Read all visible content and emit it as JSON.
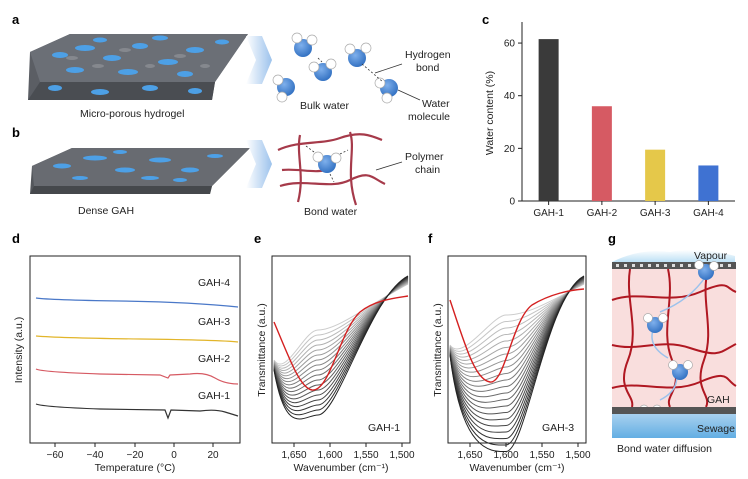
{
  "panels": {
    "a": {
      "letter": "a",
      "hydrogel_label": "Micro-porous hydrogel",
      "bulk_label": "Bulk water",
      "hbond_label_1": "Hydrogen",
      "hbond_label_2": "bond",
      "water_label_1": "Water",
      "water_label_2": "molecule"
    },
    "b": {
      "letter": "b",
      "gah_label": "Dense GAH",
      "bond_label": "Bond water",
      "polymer_label_1": "Polymer",
      "polymer_label_2": "chain"
    },
    "c": {
      "letter": "c"
    },
    "d": {
      "letter": "d",
      "xlabel": "Temperature (°C)",
      "ylabel": "Intensity (a.u.)",
      "xticks": [
        "−60",
        "−40",
        "−20",
        "0",
        "20"
      ],
      "curve_labels": [
        "GAH-4",
        "GAH-3",
        "GAH-2",
        "GAH-1"
      ],
      "colors": [
        "#4a78c8",
        "#e2b52a",
        "#d65a63",
        "#333333"
      ]
    },
    "e": {
      "letter": "e",
      "xlabel": "Wavenumber (cm⁻¹)",
      "ylabel": "Transmittance (a.u.)",
      "xticks": [
        "1,650",
        "1,600",
        "1,550",
        "1,500"
      ],
      "sample": "GAH-1"
    },
    "f": {
      "letter": "f",
      "xlabel": "Wavenumber (cm⁻¹)",
      "ylabel": "Transmittance (a.u.)",
      "xticks": [
        "1,650",
        "1,600",
        "1,550",
        "1,500"
      ],
      "sample": "GAH-3"
    },
    "g": {
      "letter": "g",
      "vapour": "Vapour",
      "gah": "GAH",
      "sewage": "Sewage",
      "caption": "Bond water diffusion"
    }
  },
  "chart_data": {
    "type": "bar",
    "categories": [
      "GAH-1",
      "GAH-2",
      "GAH-3",
      "GAH-4"
    ],
    "values": [
      61.5,
      36,
      19.5,
      13.5
    ],
    "colors": [
      "#3a3a3a",
      "#d65a63",
      "#e5c84a",
      "#3f72d2"
    ],
    "ylabel": "Water content (%)",
    "ylim": [
      0,
      68
    ],
    "yticks": [
      "0",
      "20",
      "40",
      "60"
    ]
  }
}
